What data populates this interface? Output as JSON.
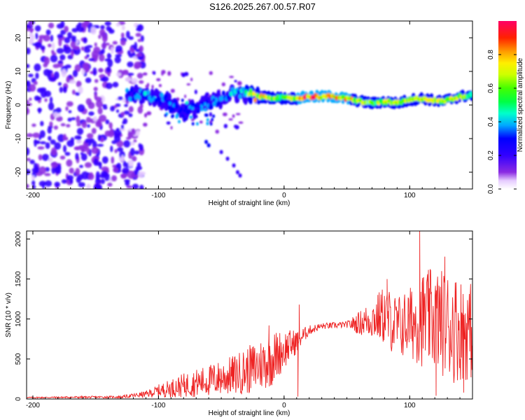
{
  "title": "S126.2025.267.00.57.R07",
  "chart_data": [
    {
      "type": "heatmap",
      "xlabel": "Height of straight line (km)",
      "ylabel": "Frequency (Hz)",
      "xlim": [
        -205,
        150
      ],
      "ylim": [
        -25,
        25
      ],
      "xticks": [
        -200,
        -100,
        0,
        100
      ],
      "yticks": [
        -20,
        -10,
        0,
        10,
        20
      ],
      "colorbar": {
        "label": "Normalized spectral amplitude",
        "range": [
          0,
          1
        ],
        "ticks": [
          0.0,
          0.2,
          0.4,
          0.6,
          0.8
        ],
        "tick_labels": [
          "0.0",
          "0.2",
          "0.4",
          "0.6",
          "0.8"
        ]
      },
      "ridge": [
        {
          "x": -125,
          "f": 3.0,
          "a": 0.35
        },
        {
          "x": -110,
          "f": 3.0,
          "a": 0.4
        },
        {
          "x": -95,
          "f": 1.5,
          "a": 0.3
        },
        {
          "x": -80,
          "f": -2.0,
          "a": 0.3
        },
        {
          "x": -70,
          "f": -1.0,
          "a": 0.3
        },
        {
          "x": -55,
          "f": 1.0,
          "a": 0.35
        },
        {
          "x": -45,
          "f": 3.0,
          "a": 0.4
        },
        {
          "x": -35,
          "f": 3.5,
          "a": 0.45
        },
        {
          "x": -20,
          "f": 2.5,
          "a": 0.85
        },
        {
          "x": 0,
          "f": 2.0,
          "a": 0.6
        },
        {
          "x": 10,
          "f": 2.0,
          "a": 0.85
        },
        {
          "x": 20,
          "f": 2.5,
          "a": 0.95
        },
        {
          "x": 40,
          "f": 2.5,
          "a": 0.9
        },
        {
          "x": 55,
          "f": 1.5,
          "a": 0.85
        },
        {
          "x": 70,
          "f": 0.5,
          "a": 0.6
        },
        {
          "x": 80,
          "f": 1.0,
          "a": 0.8
        },
        {
          "x": 90,
          "f": 0.5,
          "a": 0.8
        },
        {
          "x": 100,
          "f": 1.5,
          "a": 0.7
        },
        {
          "x": 110,
          "f": 2.0,
          "a": 0.8
        },
        {
          "x": 125,
          "f": 1.0,
          "a": 0.7
        },
        {
          "x": 140,
          "f": 2.5,
          "a": 0.75
        },
        {
          "x": 150,
          "f": 3.0,
          "a": 0.6
        }
      ]
    },
    {
      "type": "line",
      "xlabel": "Height of straight line (km)",
      "ylabel": "SNR (10 * v/v)",
      "xlim": [
        -205,
        150
      ],
      "ylim": [
        0,
        2100
      ],
      "xticks": [
        -200,
        -100,
        0,
        100
      ],
      "yticks": [
        0,
        500,
        1000,
        1500,
        2000
      ],
      "color": "#ee2222",
      "trend": [
        {
          "x": -205,
          "mean": 18,
          "amp": 8
        },
        {
          "x": -130,
          "mean": 25,
          "amp": 15
        },
        {
          "x": -110,
          "mean": 60,
          "amp": 40
        },
        {
          "x": -100,
          "mean": 100,
          "amp": 80
        },
        {
          "x": -80,
          "mean": 170,
          "amp": 150
        },
        {
          "x": -60,
          "mean": 230,
          "amp": 200
        },
        {
          "x": -40,
          "mean": 300,
          "amp": 250
        },
        {
          "x": -25,
          "mean": 380,
          "amp": 320
        },
        {
          "x": -10,
          "mean": 500,
          "amp": 350
        },
        {
          "x": 0,
          "mean": 620,
          "amp": 250
        },
        {
          "x": 10,
          "mean": 720,
          "amp": 150
        },
        {
          "x": 20,
          "mean": 860,
          "amp": 60
        },
        {
          "x": 30,
          "mean": 910,
          "amp": 40
        },
        {
          "x": 50,
          "mean": 930,
          "amp": 40
        },
        {
          "x": 60,
          "mean": 950,
          "amp": 150
        },
        {
          "x": 70,
          "mean": 1000,
          "amp": 250
        },
        {
          "x": 80,
          "mean": 1050,
          "amp": 380
        },
        {
          "x": 90,
          "mean": 900,
          "amp": 400
        },
        {
          "x": 100,
          "mean": 950,
          "amp": 450
        },
        {
          "x": 110,
          "mean": 1000,
          "amp": 600
        },
        {
          "x": 120,
          "mean": 1000,
          "amp": 650
        },
        {
          "x": 135,
          "mean": 900,
          "amp": 700
        },
        {
          "x": 150,
          "mean": 850,
          "amp": 600
        }
      ],
      "peaks": [
        {
          "x": -12,
          "y": 920
        },
        {
          "x": 12,
          "y": 1180
        },
        {
          "x": 82,
          "y": 1500
        },
        {
          "x": 108,
          "y": 2100
        },
        {
          "x": 128,
          "y": 1780
        }
      ],
      "dips": [
        {
          "x": 11,
          "y": 30
        },
        {
          "x": 121,
          "y": 40
        },
        {
          "x": 143,
          "y": 80
        }
      ]
    }
  ]
}
